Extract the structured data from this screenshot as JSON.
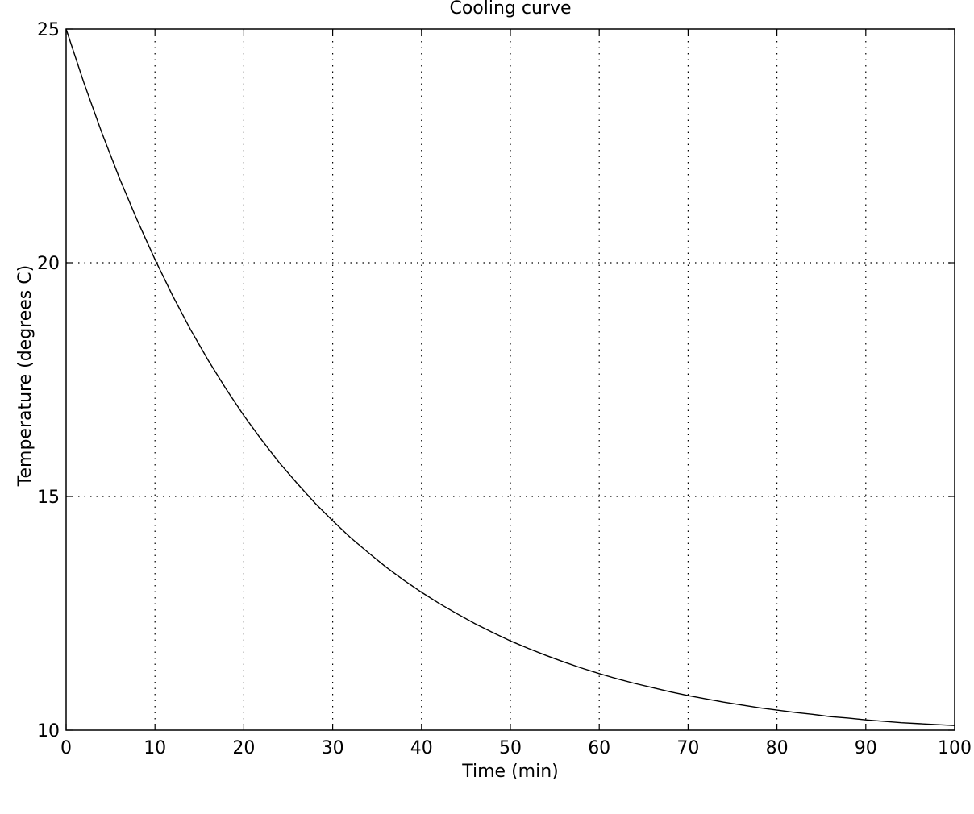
{
  "chart_data": {
    "type": "line",
    "title": "Cooling curve",
    "xlabel": "Time (min)",
    "ylabel": "Temperature (degrees C)",
    "xlim": [
      0,
      100
    ],
    "ylim": [
      10,
      25
    ],
    "xticks": [
      0,
      10,
      20,
      30,
      40,
      50,
      60,
      70,
      80,
      90,
      100
    ],
    "yticks": [
      10,
      15,
      20,
      25
    ],
    "grid": true,
    "series": [
      {
        "color": "#000000",
        "x": [
          0,
          2,
          4,
          6,
          8,
          10,
          12,
          14,
          16,
          18,
          20,
          22,
          24,
          26,
          28,
          30,
          32,
          34,
          36,
          38,
          40,
          42,
          44,
          46,
          48,
          50,
          52,
          54,
          56,
          58,
          60,
          62,
          64,
          66,
          68,
          70,
          72,
          74,
          76,
          78,
          80,
          82,
          84,
          86,
          88,
          90,
          92,
          94,
          96,
          98,
          100
        ],
        "y": [
          25.0,
          23.85,
          22.79,
          21.81,
          20.91,
          20.07,
          19.29,
          18.57,
          17.91,
          17.3,
          16.73,
          16.21,
          15.72,
          15.28,
          14.86,
          14.48,
          14.12,
          13.8,
          13.49,
          13.21,
          12.95,
          12.71,
          12.49,
          12.28,
          12.09,
          11.91,
          11.75,
          11.6,
          11.46,
          11.33,
          11.21,
          11.1,
          11.0,
          10.91,
          10.82,
          10.74,
          10.67,
          10.6,
          10.54,
          10.48,
          10.43,
          10.38,
          10.34,
          10.29,
          10.26,
          10.22,
          10.19,
          10.16,
          10.14,
          10.12,
          10.1
        ]
      }
    ]
  }
}
